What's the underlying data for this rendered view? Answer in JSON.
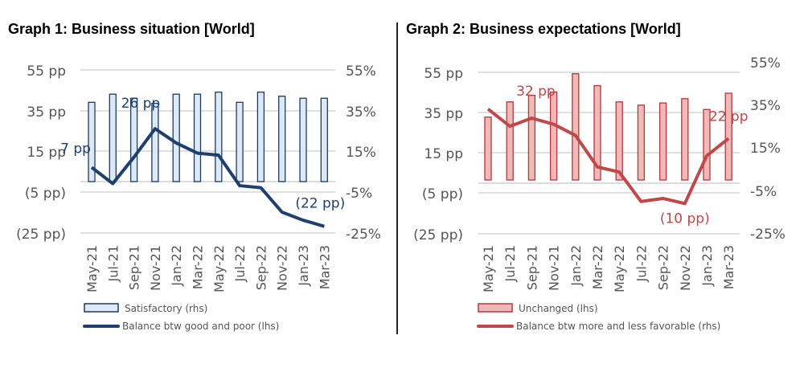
{
  "chart_data": [
    {
      "type": "bar+line",
      "title": "Graph 1: Business situation [World]",
      "categories": [
        "May-21",
        "Jul-21",
        "Sep-21",
        "Nov-21",
        "Jan-22",
        "Mar-22",
        "May-22",
        "Jul-22",
        "Sep-22",
        "Nov-22",
        "Jan-23",
        "Mar-23"
      ],
      "left_ticks": [
        "55 pp",
        "35 pp",
        "15 pp",
        "(5 pp)",
        "(25 pp)"
      ],
      "right_ticks": [
        "55%",
        "35%",
        "15%",
        "-5%",
        "-25%"
      ],
      "left_range": [
        -25,
        55
      ],
      "right_range": [
        -25,
        55
      ],
      "series": [
        {
          "name": "Satisfactory (rhs)",
          "type": "bar",
          "axis": "right",
          "color": "#dce9f7",
          "stroke": "#1f3a5f",
          "values": [
            39,
            43,
            41,
            38.5,
            43,
            43,
            44,
            39,
            44,
            42,
            41,
            41
          ]
        },
        {
          "name": "Balance btw good and poor (lhs)",
          "type": "line",
          "axis": "left",
          "color": "#1f3f6e",
          "values": [
            7,
            -1,
            12,
            26,
            19,
            14,
            13,
            -2,
            -3,
            -15,
            -19,
            -22
          ]
        }
      ],
      "annotations": [
        {
          "text": "7 pp",
          "index": 0
        },
        {
          "text": "26 pp",
          "index": 3
        },
        {
          "text": "(22 pp)",
          "index": 11
        }
      ]
    },
    {
      "type": "bar+line",
      "title": "Graph 2: Business expectations [World]",
      "categories": [
        "May-21",
        "Jul-21",
        "Sep-21",
        "Nov-21",
        "Jan-22",
        "Mar-22",
        "May-22",
        "Jul-22",
        "Sep-22",
        "Nov-22",
        "Jan-23",
        "Mar-23"
      ],
      "left_ticks": [
        "55 pp",
        "35 pp",
        "15 pp",
        "(5 pp)",
        "(25 pp)"
      ],
      "right_ticks": [
        "55%",
        "35%",
        "15%",
        "-5%",
        "-25%"
      ],
      "left_range": [
        -25,
        55
      ],
      "right_range": [
        -25,
        55
      ],
      "series": [
        {
          "name": "Unchanged (lhs)",
          "type": "bar",
          "axis": "right",
          "color": "#f2b8b8",
          "stroke": "#b03a3a",
          "values": [
            29,
            36,
            39,
            40.5,
            49,
            43.5,
            36,
            34.5,
            35.5,
            37.5,
            32.5,
            40
          ]
        },
        {
          "name": "Balance btw more and less favorable (rhs)",
          "type": "line",
          "axis": "left",
          "color": "#c0474a",
          "values": [
            36.5,
            28,
            32,
            29,
            23.5,
            8,
            5.5,
            -9,
            -7.5,
            -10,
            13.5,
            22
          ]
        }
      ],
      "annotations": [
        {
          "text": "32 pp",
          "index": 2
        },
        {
          "text": "(10 pp)",
          "index": 9
        },
        {
          "text": "22 pp",
          "index": 11
        }
      ]
    }
  ]
}
